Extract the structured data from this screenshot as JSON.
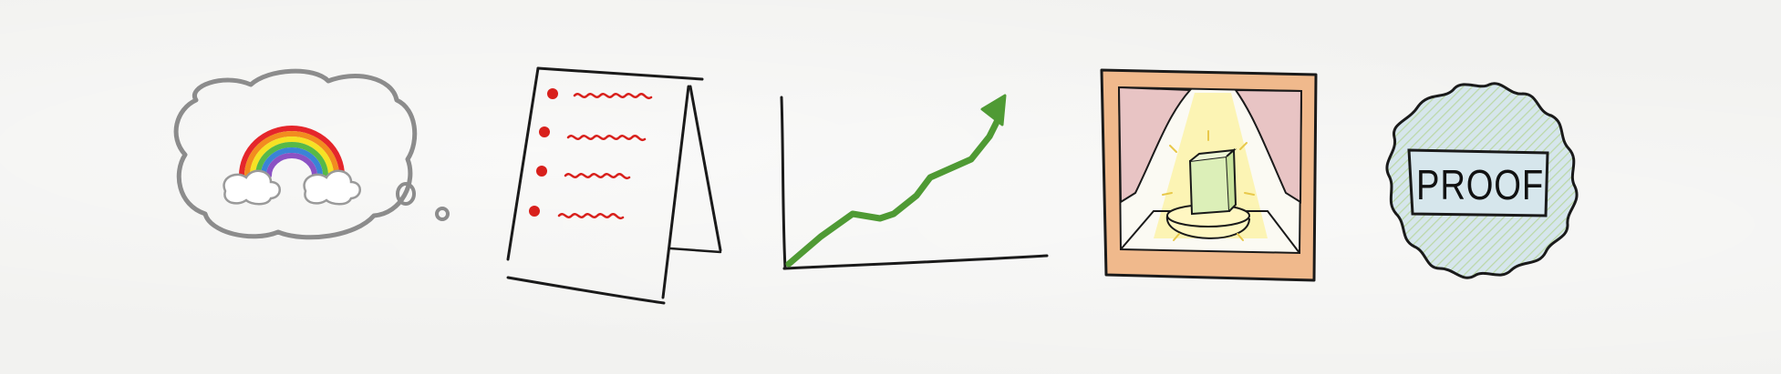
{
  "illustrations": [
    {
      "icon": "thought-bubble-rainbow-icon"
    },
    {
      "icon": "flipchart-list-icon"
    },
    {
      "icon": "rising-line-chart-icon"
    },
    {
      "icon": "spotlit-stage-trophy-icon"
    },
    {
      "icon": "proof-seal-icon",
      "stamp_text": "PROOF"
    }
  ],
  "colors": {
    "background": "#f2f2f0",
    "ink": "#1a1a1a",
    "bubble_outline": "#8c8c8c",
    "bullet_red": "#d8201c",
    "chart_green": "#4f9a34",
    "frame_orange": "#f0b98c",
    "curtain_pink": "#e8c4c4",
    "spotlight_yellow": "#fbf2a8",
    "seal_blue": "#cfe0e8"
  }
}
